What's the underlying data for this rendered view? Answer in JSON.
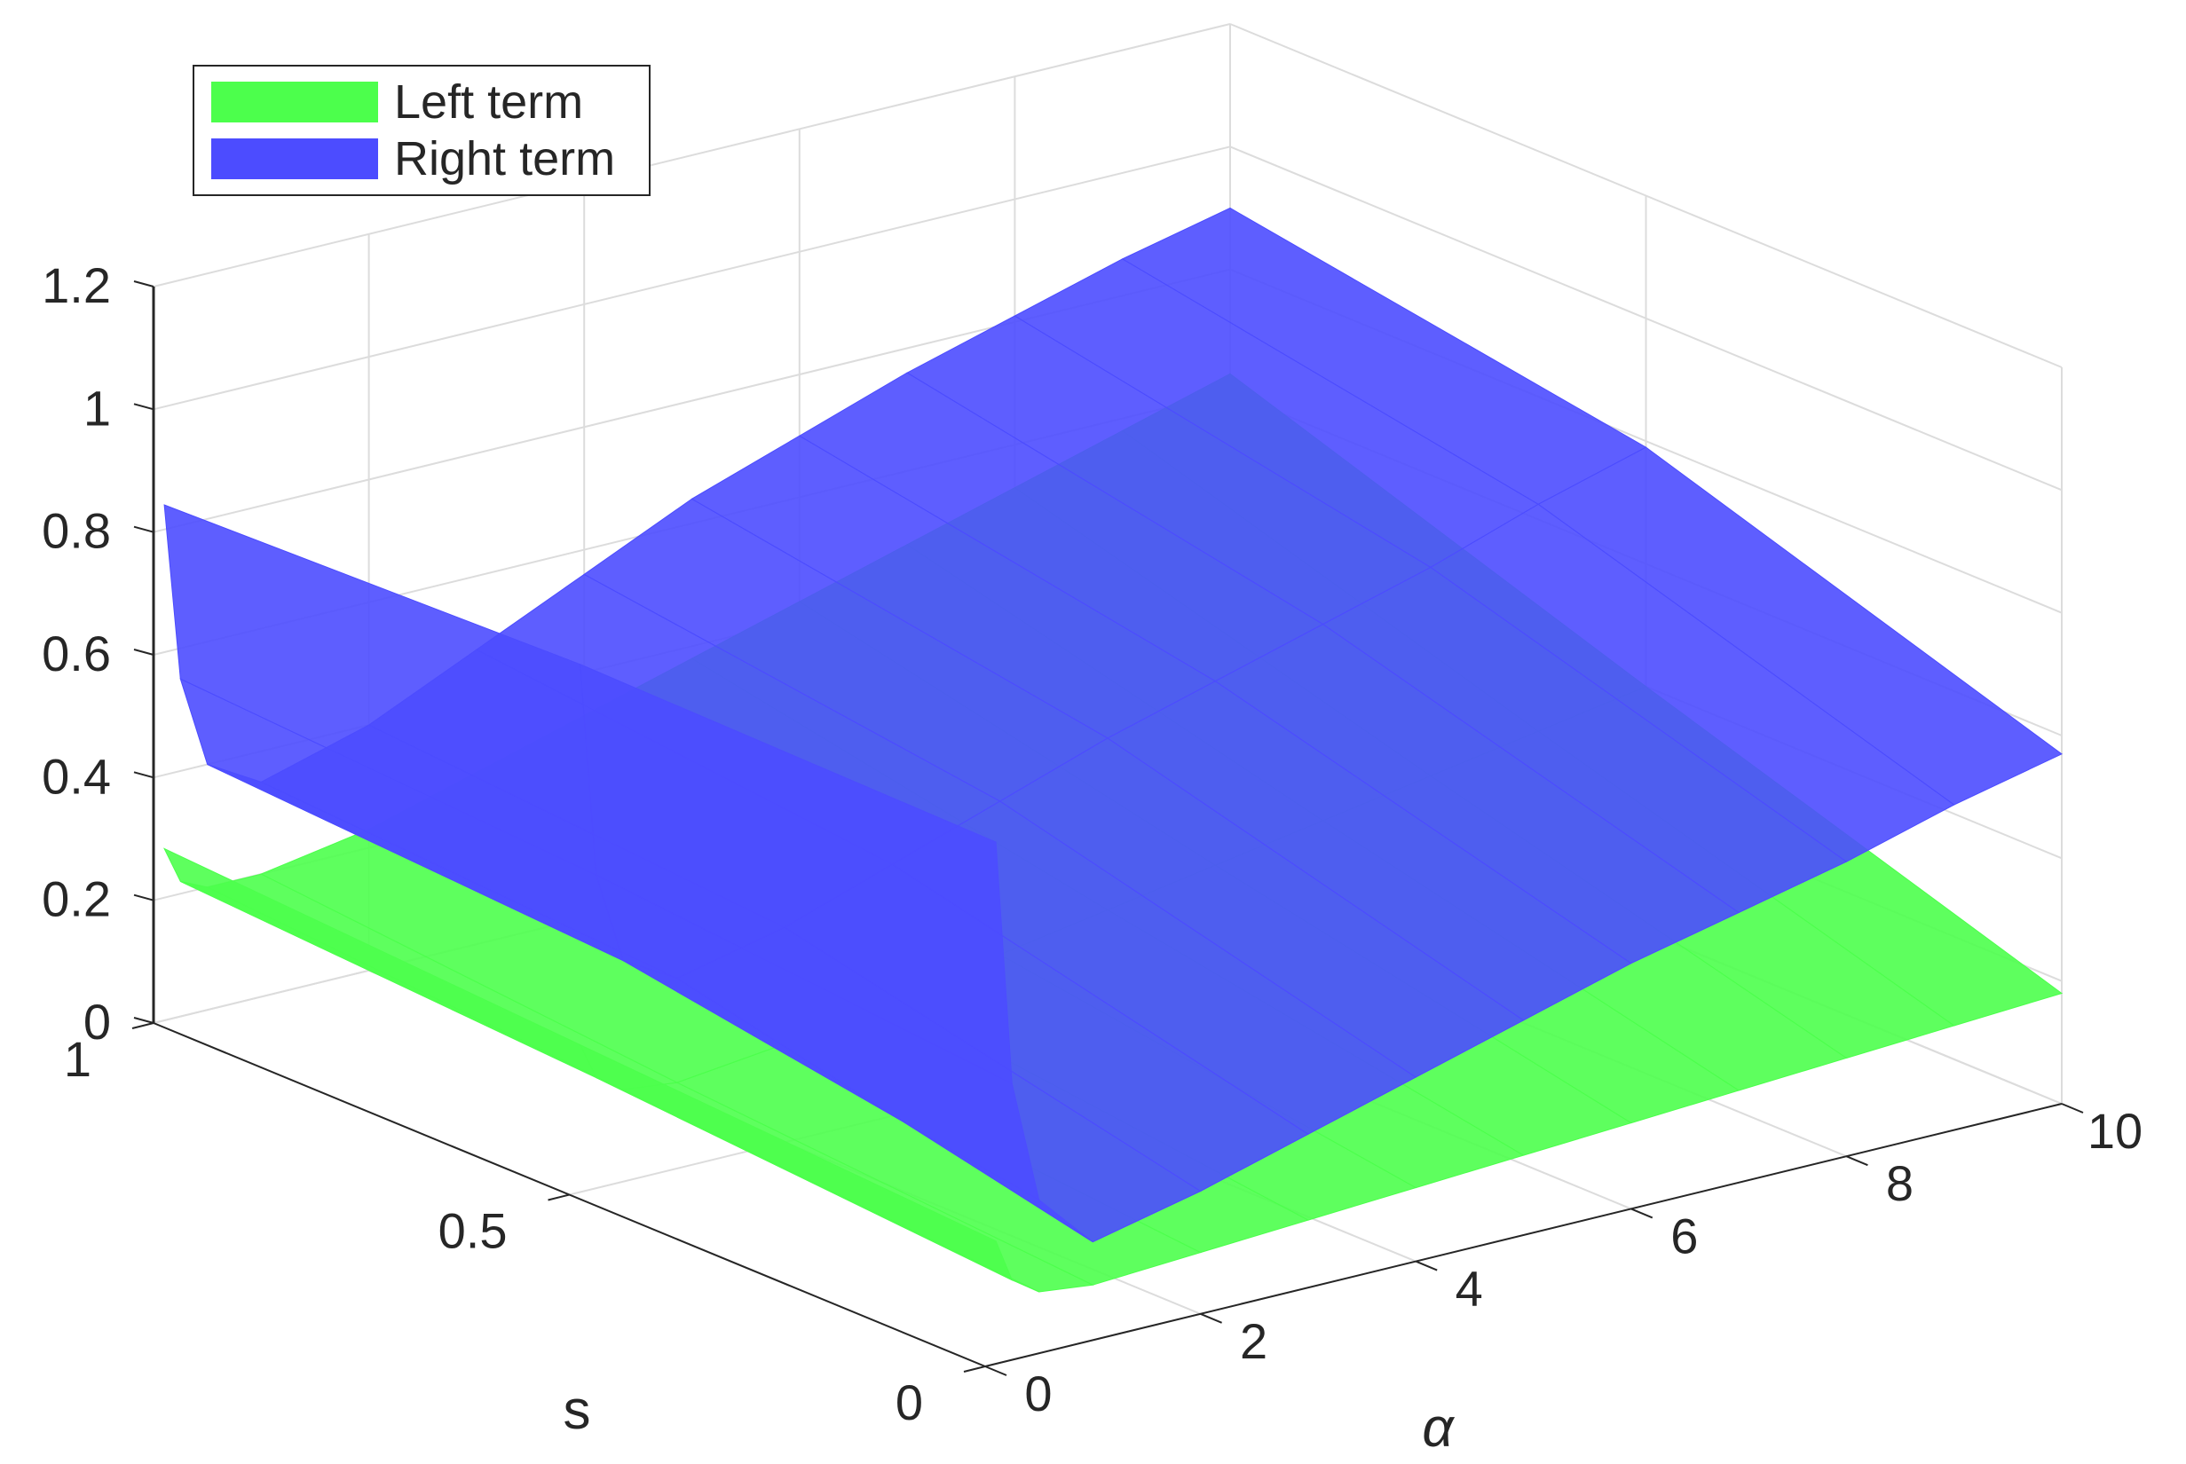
{
  "chart_data": {
    "type": "surface",
    "title": "",
    "xlabel": "α",
    "ylabel": "s",
    "zlabel": "",
    "xlim": [
      0,
      10
    ],
    "ylim": [
      0,
      1
    ],
    "zlim": [
      0,
      1.2
    ],
    "xticks": [
      "0",
      "2",
      "4",
      "6",
      "8",
      "10"
    ],
    "yticks": [
      "0",
      "0.5",
      "1"
    ],
    "zticks": [
      "0",
      "0.2",
      "0.4",
      "0.6",
      "0.8",
      "1",
      "1.2"
    ],
    "grid": true,
    "legend_position": "top-left",
    "x": [
      0.1,
      0.25,
      0.5,
      1,
      2,
      3,
      4,
      5,
      6,
      7,
      8,
      9,
      10
    ],
    "s": [
      0,
      0.5,
      1
    ],
    "series": [
      {
        "name": "Left term",
        "color": "#00ff00",
        "z": [
          [
            0.2,
            0.13,
            0.1,
            0.09,
            0.1,
            0.11,
            0.12,
            0.13,
            0.14,
            0.15,
            0.16,
            0.17,
            0.18
          ],
          [
            0.24,
            0.18,
            0.15,
            0.14,
            0.16,
            0.19,
            0.22,
            0.25,
            0.28,
            0.31,
            0.34,
            0.37,
            0.4
          ],
          [
            0.28,
            0.22,
            0.2,
            0.2,
            0.23,
            0.28,
            0.33,
            0.38,
            0.43,
            0.48,
            0.53,
            0.58,
            0.63
          ]
        ]
      },
      {
        "name": "Right term",
        "color": "#0000ff",
        "z": [
          [
            0.85,
            0.45,
            0.25,
            0.16,
            0.2,
            0.25,
            0.3,
            0.35,
            0.4,
            0.44,
            0.48,
            0.53,
            0.57
          ],
          [
            0.86,
            0.51,
            0.36,
            0.31,
            0.35,
            0.41,
            0.47,
            0.53,
            0.58,
            0.63,
            0.68,
            0.74,
            0.79
          ],
          [
            0.84,
            0.55,
            0.4,
            0.35,
            0.4,
            0.48,
            0.56,
            0.64,
            0.7,
            0.76,
            0.81,
            0.86,
            0.9
          ]
        ]
      }
    ]
  }
}
